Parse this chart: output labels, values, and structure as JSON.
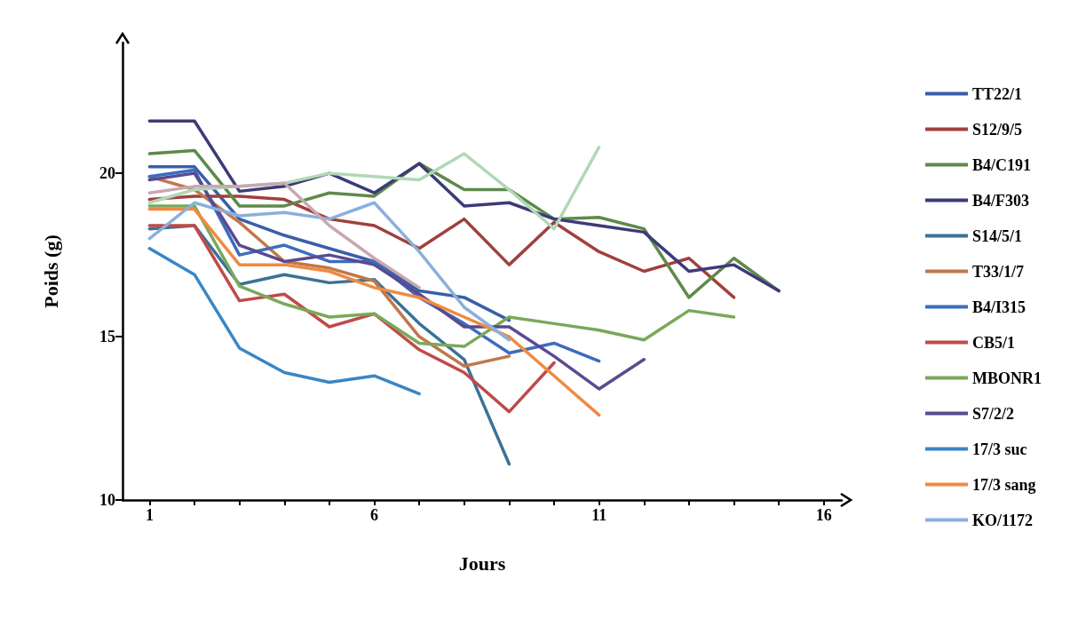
{
  "chart_data": {
    "type": "line",
    "xlabel": "Jours",
    "ylabel": "Poids (g)",
    "x": [
      1,
      2,
      3,
      4,
      5,
      6,
      7,
      8,
      9,
      10,
      11,
      12,
      13,
      14,
      15
    ],
    "xlim": [
      0.4,
      16.4
    ],
    "xticks": [
      1,
      {
        "value": 2,
        "label": null
      },
      {
        "value": 3,
        "label": null
      },
      {
        "value": 4,
        "label": null
      },
      {
        "value": 5,
        "label": null
      },
      6,
      {
        "value": 7,
        "label": null
      },
      {
        "value": 8,
        "label": null
      },
      {
        "value": 9,
        "label": null
      },
      {
        "value": 10,
        "label": null
      },
      11,
      {
        "value": 12,
        "label": null
      },
      {
        "value": 13,
        "label": null
      },
      {
        "value": 14,
        "label": null
      },
      {
        "value": 15,
        "label": null
      },
      16
    ],
    "ylim": [
      10,
      24
    ],
    "yticks": [
      10,
      15,
      20
    ],
    "grid": false,
    "legend": "right",
    "marker": "none",
    "line_style": "solid",
    "series": [
      {
        "name": "TT22/1",
        "color": "#3a5fa8",
        "values": [
          20.2,
          20.2,
          18.6,
          18.1,
          17.7,
          17.3,
          16.4,
          16.2,
          15.5,
          null,
          null,
          null,
          null,
          null,
          null
        ]
      },
      {
        "name": "S12/9/5",
        "color": "#a0403c",
        "values": [
          19.2,
          19.3,
          19.3,
          19.2,
          18.6,
          18.4,
          17.7,
          18.6,
          17.2,
          18.5,
          17.6,
          17.0,
          17.4,
          16.2,
          null
        ]
      },
      {
        "name": "B4/C191",
        "color": "#5e8a4a",
        "values": [
          20.6,
          20.7,
          19.0,
          19.0,
          19.4,
          19.3,
          20.3,
          19.5,
          19.5,
          18.6,
          18.65,
          18.3,
          16.2,
          17.4,
          16.4
        ]
      },
      {
        "name": "B4/F303",
        "color": "#3d3a78",
        "values": [
          21.6,
          21.6,
          19.45,
          19.6,
          20.0,
          19.4,
          20.3,
          19.0,
          19.1,
          18.6,
          18.4,
          18.2,
          17.0,
          17.2,
          16.4
        ]
      },
      {
        "name": "S14/5/1",
        "color": "#3a7296",
        "values": [
          18.3,
          18.4,
          16.6,
          16.9,
          16.65,
          16.75,
          15.4,
          14.3,
          11.1,
          null,
          null,
          null,
          null,
          null,
          null
        ]
      },
      {
        "name": "T33/1/7",
        "color": "#c0784a",
        "values": [
          19.9,
          19.5,
          18.5,
          17.3,
          17.1,
          16.7,
          15.0,
          14.1,
          14.4,
          null,
          null,
          null,
          null,
          null,
          null
        ]
      },
      {
        "name": "B4/I315",
        "color": "#3c6cbf",
        "values": [
          19.9,
          20.1,
          17.5,
          17.8,
          17.3,
          17.3,
          16.2,
          15.4,
          14.5,
          14.8,
          14.25,
          null,
          null,
          null,
          null
        ]
      },
      {
        "name": "CB5/1",
        "color": "#c04a48",
        "values": [
          18.4,
          18.4,
          16.1,
          16.3,
          15.3,
          15.7,
          14.6,
          13.9,
          12.7,
          14.2,
          null,
          null,
          null,
          null,
          null
        ]
      },
      {
        "name": "MBONR1",
        "color": "#7aa85a",
        "values": [
          19.0,
          19.0,
          16.55,
          16.0,
          15.6,
          15.7,
          14.8,
          14.7,
          15.6,
          15.4,
          15.2,
          14.9,
          15.8,
          15.6,
          null
        ]
      },
      {
        "name": "S7/2/2",
        "color": "#5a4a90",
        "values": [
          19.8,
          20.0,
          17.8,
          17.3,
          17.5,
          17.2,
          16.3,
          15.3,
          15.3,
          14.4,
          13.4,
          14.3,
          null,
          null,
          null
        ]
      },
      {
        "name": "17/3 suc",
        "color": "#3a86c6",
        "values": [
          17.7,
          16.9,
          14.65,
          13.9,
          13.6,
          13.8,
          13.25,
          null,
          null,
          null,
          null,
          null,
          null,
          null,
          null
        ]
      },
      {
        "name": "17/3 sang",
        "color": "#f08a40",
        "values": [
          18.9,
          18.9,
          17.2,
          17.2,
          17.0,
          16.5,
          16.2,
          15.6,
          15.0,
          13.8,
          12.6,
          null,
          null,
          null,
          null
        ]
      },
      {
        "name": "KO/1172",
        "color": "#8ab0dc",
        "values": [
          18.0,
          19.1,
          18.7,
          18.8,
          18.6,
          19.1,
          17.6,
          15.9,
          14.9,
          null,
          null,
          null,
          null,
          null,
          null
        ]
      },
      {
        "color": "#b0d8b8",
        "values": [
          19.1,
          19.5,
          19.6,
          19.7,
          20.0,
          19.9,
          19.8,
          20.6,
          19.5,
          18.3,
          20.8,
          null,
          null,
          null,
          null
        ]
      },
      {
        "color": "#c8a8b0",
        "values": [
          19.4,
          19.6,
          19.6,
          19.7,
          18.4,
          17.4,
          16.5,
          null,
          null,
          null,
          null,
          null,
          null,
          null,
          null
        ]
      }
    ]
  }
}
